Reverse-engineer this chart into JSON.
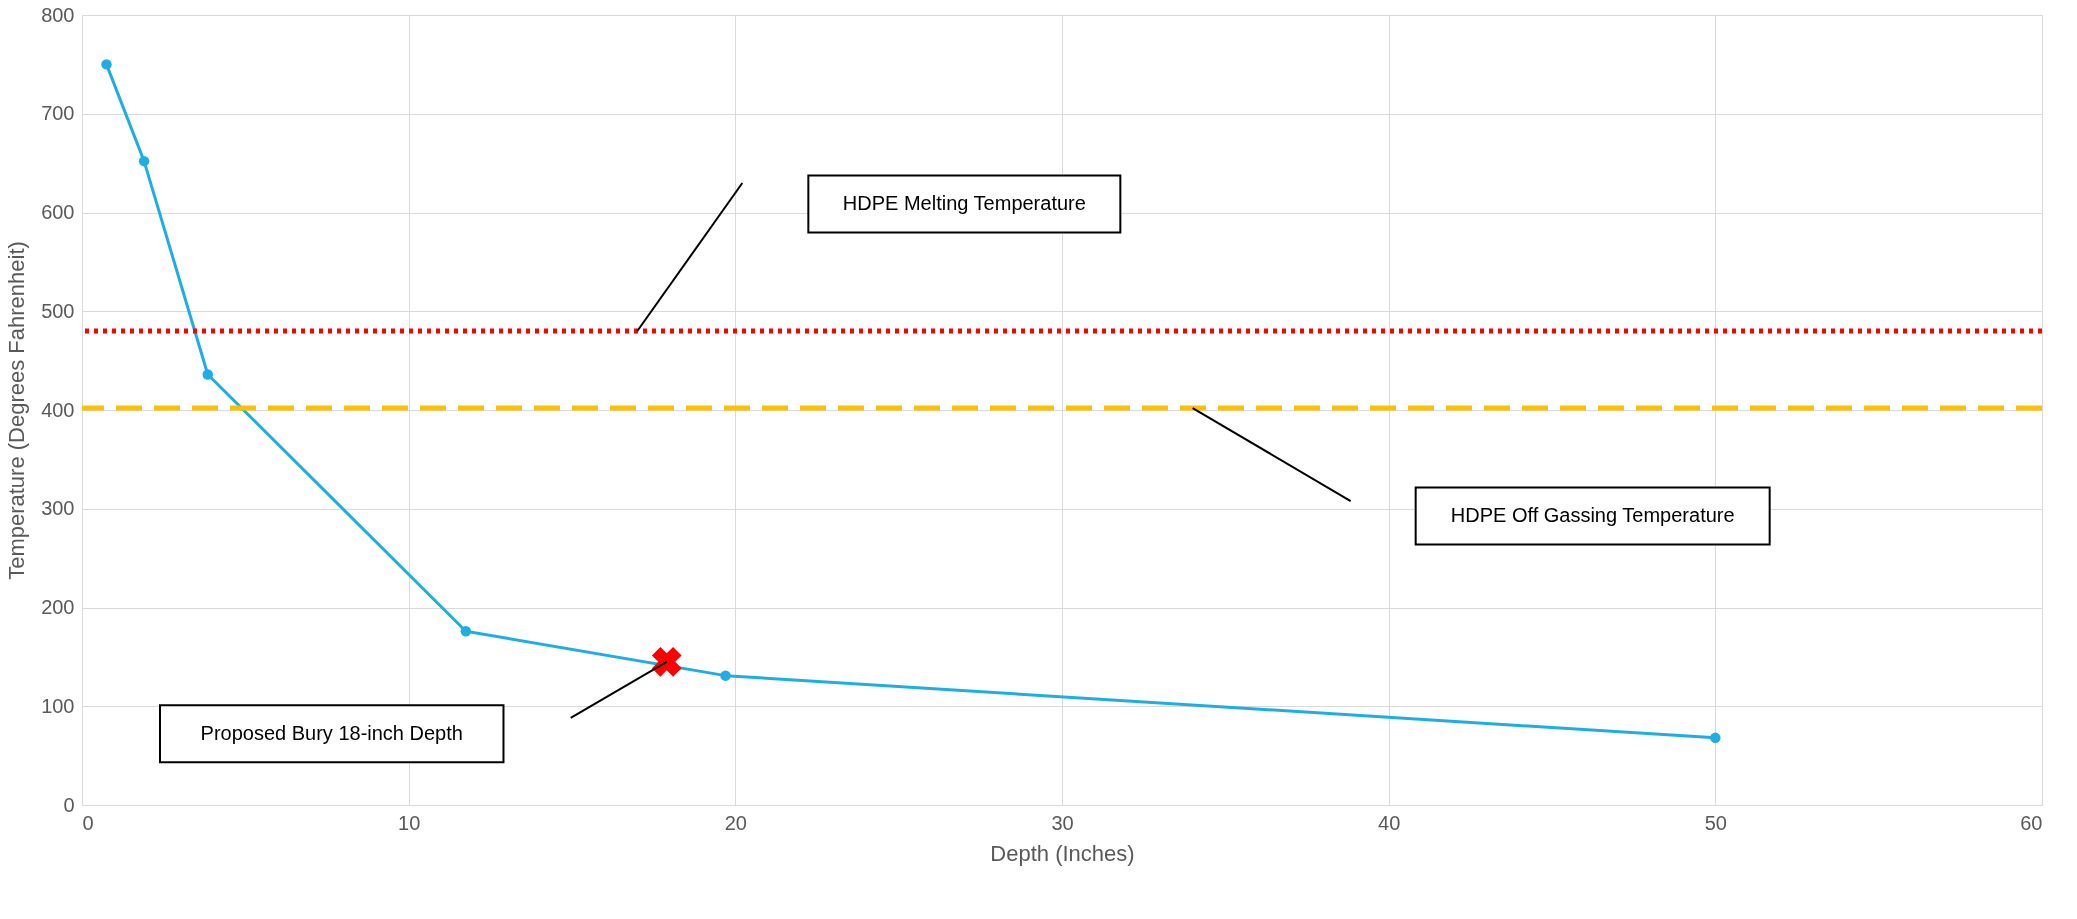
{
  "chart_data": {
    "type": "line",
    "xlabel": "Depth (Inches)",
    "ylabel": "Temperature (Degrees Fahrenheit)",
    "series": [
      {
        "type": "line",
        "color": "#1faee3",
        "x": [
          0.75,
          1.9,
          3.85,
          11.75,
          19.7,
          50
        ],
        "values": [
          750,
          652,
          436,
          176,
          131,
          68
        ],
        "marker": "circle",
        "line_style": "solid"
      },
      {
        "type": "scatter",
        "color": "#ff0000",
        "x": [
          17.9
        ],
        "values": [
          145
        ],
        "marker": "cross"
      }
    ],
    "ref_lines": [
      {
        "axis": "y",
        "value": 480,
        "color": "#ff0000",
        "line_style": "dotted"
      },
      {
        "axis": "y",
        "value": 402,
        "color": "#ffc000",
        "line_style": "dashed"
      }
    ],
    "annotations": [
      "HDPE Melting Temperature",
      "HDPE Off Gassing Temperature",
      "Proposed Bury 18-inch Depth"
    ],
    "xlim": [
      0,
      60
    ],
    "xticks": [
      0,
      10,
      20,
      30,
      40,
      50,
      60
    ],
    "ylim": [
      0,
      800
    ],
    "yticks": [
      0,
      100,
      200,
      300,
      400,
      500,
      600,
      700,
      800
    ],
    "grid": true,
    "legend": false
  }
}
